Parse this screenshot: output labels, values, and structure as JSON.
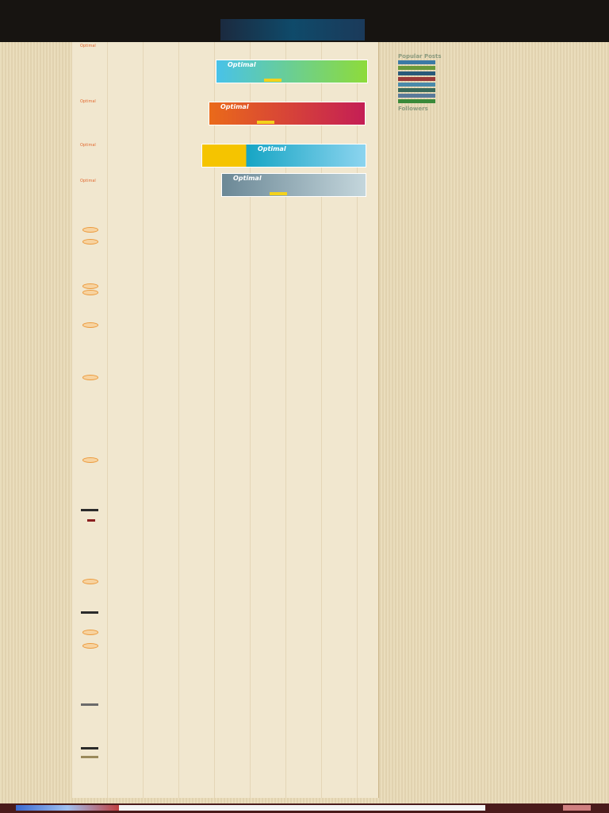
{
  "header": {
    "title": "",
    "nav_items": []
  },
  "posts": [
    {
      "title": "Optimal",
      "thumb_title": "Optimal",
      "thumb_colors": [
        "#48c2e9",
        "#8edb3a"
      ]
    },
    {
      "title": "Optimal",
      "thumb_title": "Optimal",
      "thumb_colors": [
        "#ea6a1a",
        "#c41e55"
      ]
    },
    {
      "title": "Optimal",
      "thumb_title": "Optimal",
      "thumb_colors": [
        "#16a5c4",
        "#8cd4ef"
      ]
    },
    {
      "title": "Optimal",
      "thumb_title": "Optimal",
      "thumb_colors": [
        "#6b8896",
        "#c4d6dc"
      ]
    }
  ],
  "comments": {
    "heading": "",
    "pager": []
  },
  "sidebar": {
    "top_links": [],
    "popular_title": "Popular Posts",
    "popular_posts": [],
    "followers_title": "Followers"
  },
  "footer": {
    "left": "",
    "center": "",
    "right": ""
  }
}
